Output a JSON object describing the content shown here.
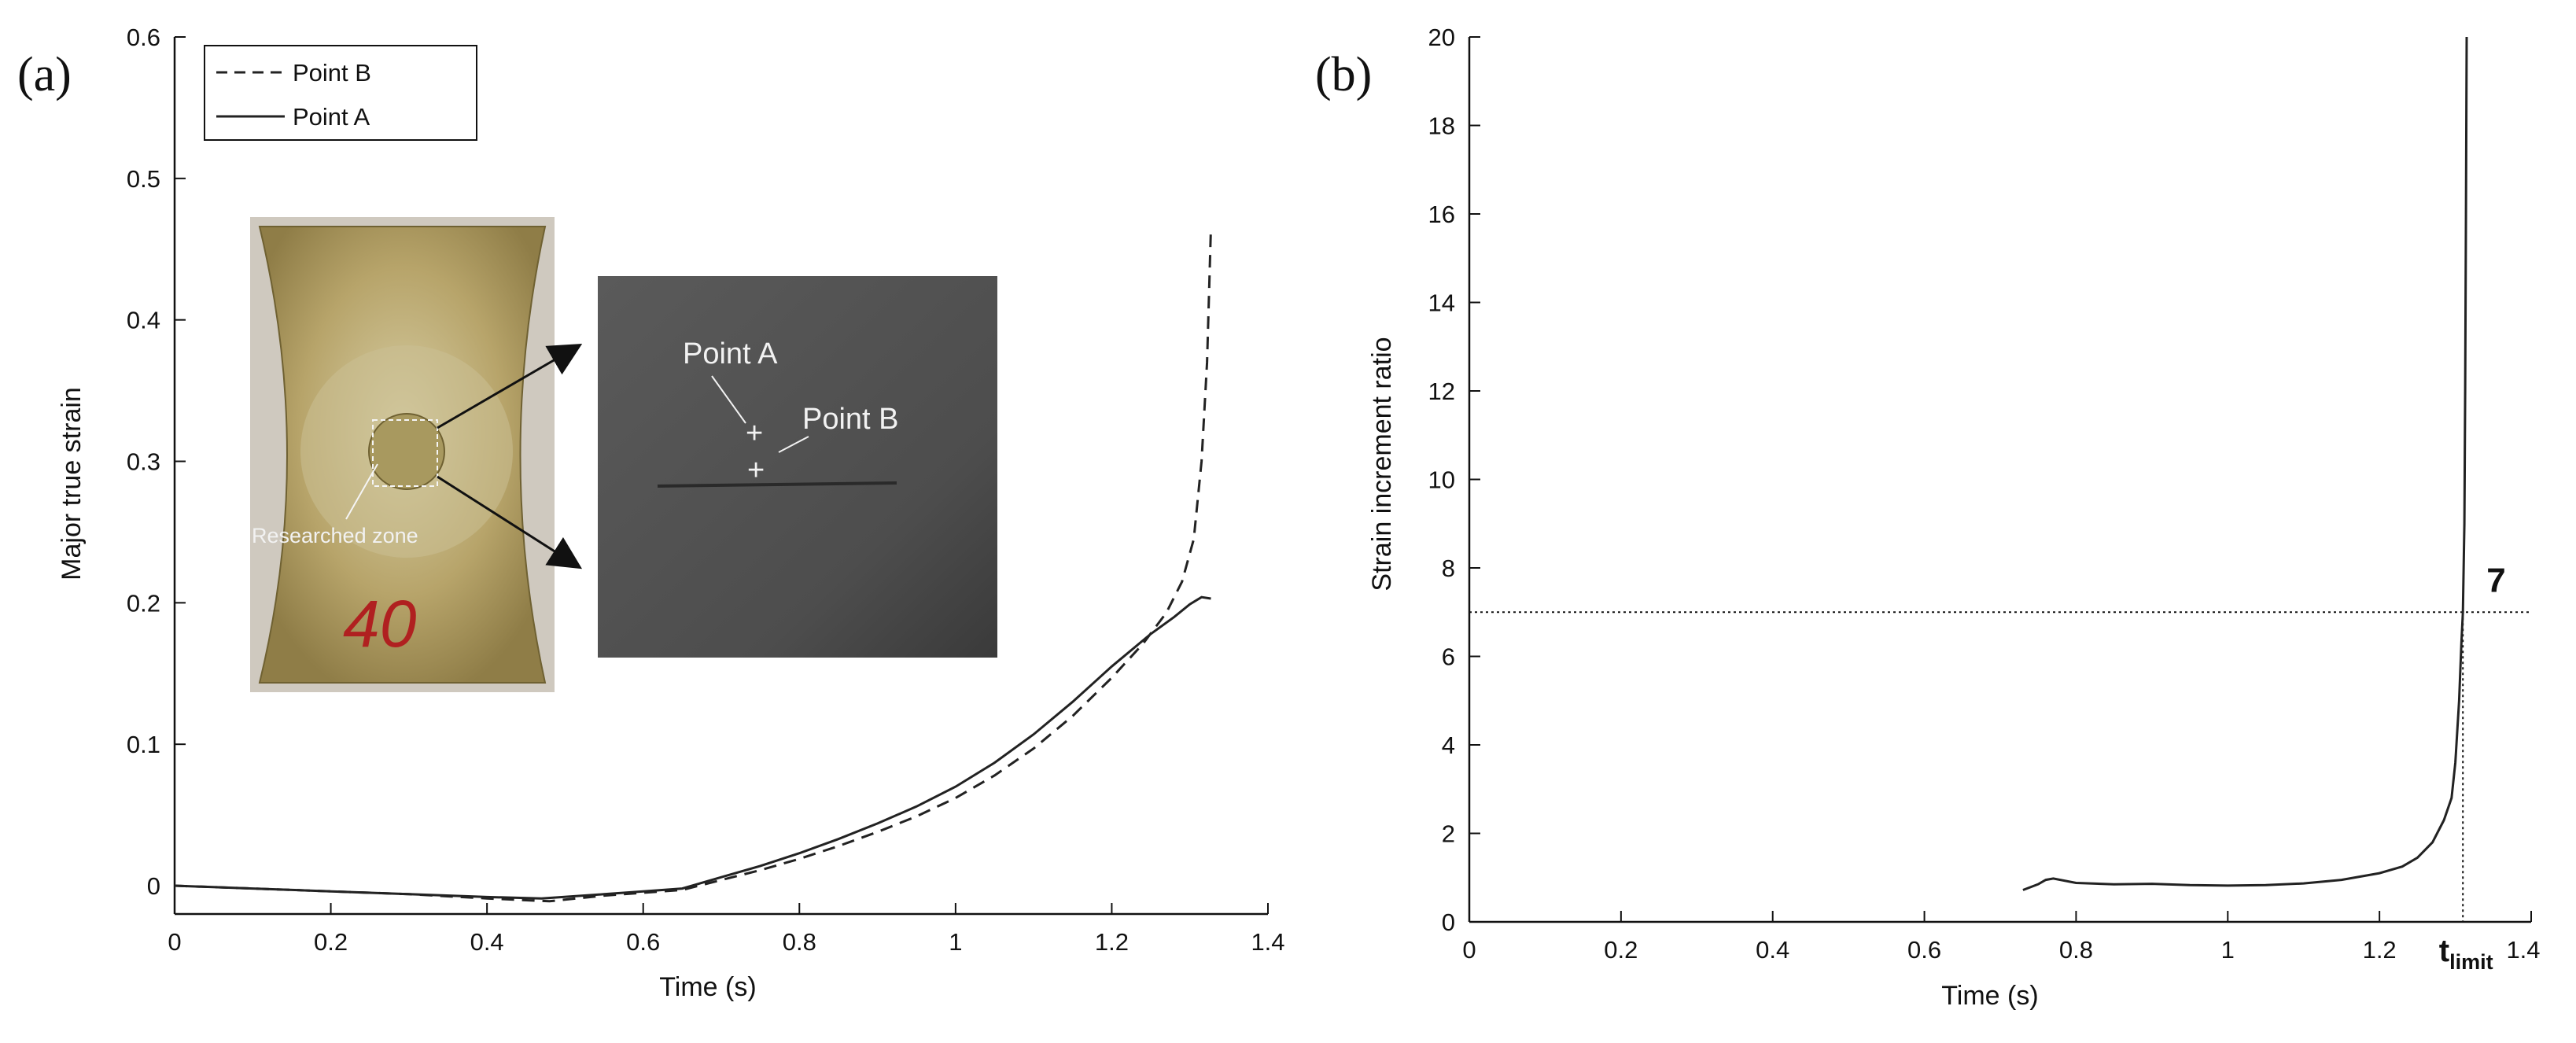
{
  "chart_data": [
    {
      "type": "line",
      "panel_label": "(a)",
      "xlabel": "Time (s)",
      "ylabel": "Major true strain",
      "xlim": [
        0,
        1.4
      ],
      "ylim": [
        -0.02,
        0.6
      ],
      "xticks": [
        "0",
        "0.2",
        "0.4",
        "0.6",
        "0.8",
        "1",
        "1.2",
        "1.4"
      ],
      "yticks": [
        "0",
        "0.1",
        "0.2",
        "0.3",
        "0.4",
        "0.5",
        "0.6"
      ],
      "grid": false,
      "legend_position": "top-left",
      "series": [
        {
          "name": "Point B",
          "style": "dashed",
          "color": "#222222",
          "points": [
            [
              0,
              0
            ],
            [
              0.1,
              -0.002
            ],
            [
              0.2,
              -0.004
            ],
            [
              0.3,
              -0.006
            ],
            [
              0.4,
              -0.009
            ],
            [
              0.48,
              -0.011
            ],
            [
              0.55,
              -0.007
            ],
            [
              0.6,
              -0.005
            ],
            [
              0.65,
              -0.003
            ],
            [
              0.7,
              0.004
            ],
            [
              0.75,
              0.011
            ],
            [
              0.8,
              0.019
            ],
            [
              0.85,
              0.028
            ],
            [
              0.9,
              0.038
            ],
            [
              0.95,
              0.049
            ],
            [
              1.0,
              0.062
            ],
            [
              1.05,
              0.078
            ],
            [
              1.1,
              0.097
            ],
            [
              1.15,
              0.12
            ],
            [
              1.2,
              0.147
            ],
            [
              1.24,
              0.171
            ],
            [
              1.27,
              0.193
            ],
            [
              1.29,
              0.215
            ],
            [
              1.305,
              0.245
            ],
            [
              1.315,
              0.3
            ],
            [
              1.322,
              0.37
            ],
            [
              1.327,
              0.465
            ]
          ]
        },
        {
          "name": "Point A",
          "style": "solid",
          "color": "#222222",
          "points": [
            [
              0,
              0
            ],
            [
              0.1,
              -0.002
            ],
            [
              0.2,
              -0.004
            ],
            [
              0.3,
              -0.006
            ],
            [
              0.4,
              -0.008
            ],
            [
              0.47,
              -0.009
            ],
            [
              0.55,
              -0.006
            ],
            [
              0.6,
              -0.004
            ],
            [
              0.65,
              -0.002
            ],
            [
              0.7,
              0.006
            ],
            [
              0.75,
              0.014
            ],
            [
              0.8,
              0.023
            ],
            [
              0.85,
              0.033
            ],
            [
              0.9,
              0.044
            ],
            [
              0.95,
              0.056
            ],
            [
              1.0,
              0.07
            ],
            [
              1.05,
              0.087
            ],
            [
              1.1,
              0.107
            ],
            [
              1.15,
              0.13
            ],
            [
              1.2,
              0.155
            ],
            [
              1.25,
              0.178
            ],
            [
              1.28,
              0.19
            ],
            [
              1.3,
              0.199
            ],
            [
              1.315,
              0.204
            ],
            [
              1.327,
              0.203
            ]
          ]
        }
      ],
      "inset": {
        "specimen_number": "40",
        "label_researched_zone": "Researched zone",
        "label_point_a": "Point A",
        "label_point_b": "Point B"
      }
    },
    {
      "type": "line",
      "panel_label": "(b)",
      "xlabel": "Time (s)",
      "ylabel": "Strain increment ratio",
      "xlim": [
        0,
        1.4
      ],
      "ylim": [
        0,
        20
      ],
      "xticks": [
        "0",
        "0.2",
        "0.4",
        "0.6",
        "0.8",
        "1",
        "1.2"
      ],
      "xtick_last": "1.4",
      "yticks": [
        "0",
        "2",
        "4",
        "6",
        "8",
        "10",
        "12",
        "14",
        "16",
        "18",
        "20"
      ],
      "grid": false,
      "threshold_value": 7,
      "threshold_label": "7",
      "t_limit": 1.31,
      "t_limit_label": "t",
      "t_limit_subscript": "limit",
      "series": [
        {
          "style": "solid",
          "color": "#222222",
          "points": [
            [
              0.73,
              0.72
            ],
            [
              0.75,
              0.85
            ],
            [
              0.76,
              0.95
            ],
            [
              0.77,
              0.98
            ],
            [
              0.8,
              0.88
            ],
            [
              0.85,
              0.85
            ],
            [
              0.9,
              0.86
            ],
            [
              0.95,
              0.83
            ],
            [
              1.0,
              0.82
            ],
            [
              1.05,
              0.83
            ],
            [
              1.1,
              0.87
            ],
            [
              1.15,
              0.95
            ],
            [
              1.2,
              1.1
            ],
            [
              1.23,
              1.25
            ],
            [
              1.25,
              1.45
            ],
            [
              1.27,
              1.8
            ],
            [
              1.285,
              2.3
            ],
            [
              1.295,
              2.8
            ],
            [
              1.3,
              3.6
            ],
            [
              1.305,
              5.0
            ],
            [
              1.308,
              6.3
            ],
            [
              1.31,
              7.0
            ],
            [
              1.312,
              9.0
            ],
            [
              1.313,
              12.0
            ],
            [
              1.314,
              16.0
            ],
            [
              1.315,
              20.0
            ]
          ]
        }
      ]
    }
  ]
}
